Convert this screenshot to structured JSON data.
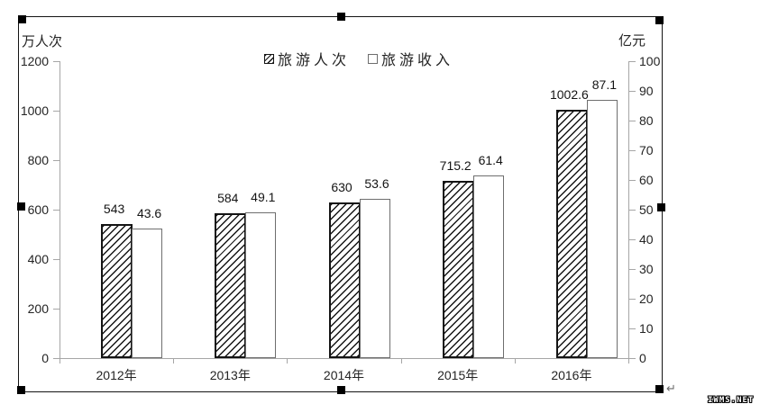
{
  "chart_data": {
    "type": "bar",
    "title": "",
    "categories": [
      "2012年",
      "2013年",
      "2014年",
      "2015年",
      "2016年"
    ],
    "series": [
      {
        "name": "旅游人次",
        "axis": "left",
        "style": "hatched",
        "values": [
          543,
          584,
          630,
          715.2,
          1002.6
        ]
      },
      {
        "name": "旅游收入",
        "axis": "right",
        "style": "plain",
        "values": [
          43.6,
          49.1,
          53.6,
          61.4,
          87.1
        ]
      }
    ],
    "left_axis": {
      "title": "万人次",
      "min": 0,
      "max": 1200,
      "step": 200,
      "ticks": [
        0,
        200,
        400,
        600,
        800,
        1000,
        1200
      ]
    },
    "right_axis": {
      "title": "亿元",
      "min": 0,
      "max": 100,
      "step": 10,
      "ticks": [
        0,
        10,
        20,
        30,
        40,
        50,
        60,
        70,
        80,
        90,
        100
      ]
    },
    "legend_position": "top",
    "grid": false
  },
  "selection": {
    "paragraph_mark": "↵",
    "handles": [
      "top-left",
      "top-center",
      "top-right",
      "middle-left",
      "middle-right",
      "bottom-left",
      "bottom-center",
      "bottom-right"
    ]
  },
  "watermark": {
    "text": "IWMS.NET"
  },
  "colors": {
    "axis_line": "#a6a6a6",
    "text": "#242424",
    "hatch": "#161616",
    "hatched_bar_border": "#141414",
    "plain_bar_border": "#6e6e6e",
    "handle": "#000000",
    "background": "#ffffff"
  }
}
